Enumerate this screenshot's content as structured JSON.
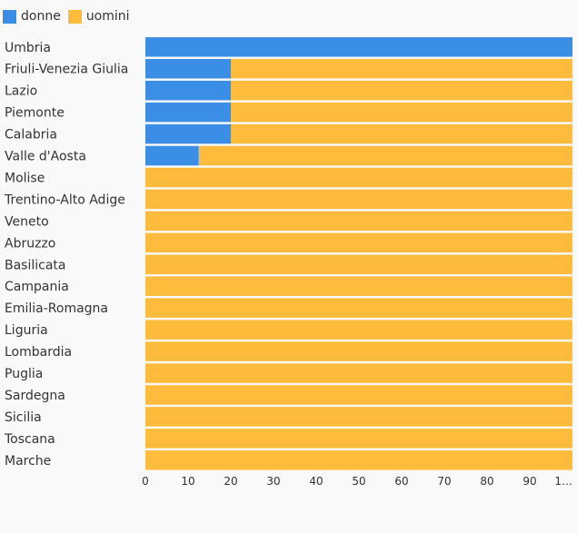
{
  "chart_data": {
    "type": "bar",
    "orientation": "horizontal",
    "stacked": true,
    "categories": [
      "Umbria",
      "Friuli-Venezia Giulia",
      "Lazio",
      "Piemonte",
      "Calabria",
      "Valle d'Aosta",
      "Molise",
      "Trentino-Alto Adige",
      "Veneto",
      "Abruzzo",
      "Basilicata",
      "Campania",
      "Emilia-Romagna",
      "Liguria",
      "Lombardia",
      "Puglia",
      "Sardegna",
      "Sicilia",
      "Toscana",
      "Marche"
    ],
    "series": [
      {
        "name": "donne",
        "color": "#3a8ee6",
        "values": [
          100,
          20,
          20,
          20,
          20,
          12.5,
          0,
          0,
          0,
          0,
          0,
          0,
          0,
          0,
          0,
          0,
          0,
          0,
          0,
          0
        ]
      },
      {
        "name": "uomini",
        "color": "#ffbb3b",
        "values": [
          0,
          80,
          80,
          80,
          80,
          87.5,
          100,
          100,
          100,
          100,
          100,
          100,
          100,
          100,
          100,
          100,
          100,
          100,
          100,
          100
        ]
      }
    ],
    "x_ticks": [
      "0",
      "10",
      "20",
      "30",
      "40",
      "50",
      "60",
      "70",
      "80",
      "90",
      "1…"
    ],
    "xlim": [
      0,
      100
    ],
    "legend_position": "top-left",
    "grid": false
  }
}
